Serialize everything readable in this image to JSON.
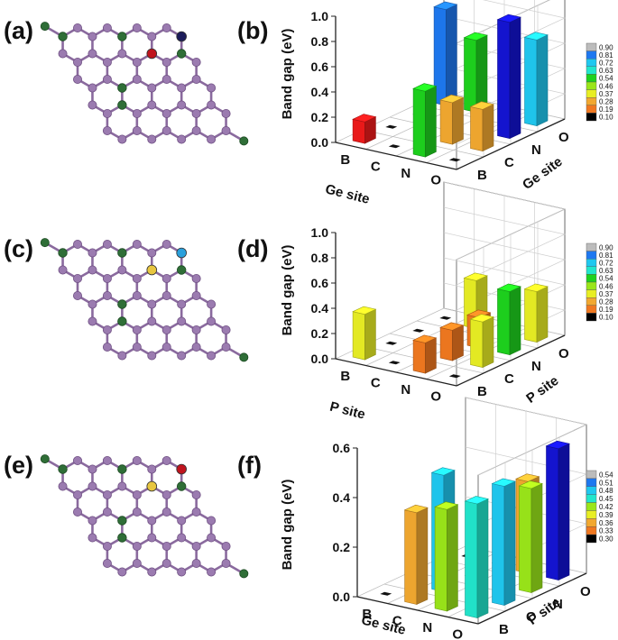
{
  "panel_labels": [
    "(a)",
    "(b)",
    "(c)",
    "(d)",
    "(e)",
    "(f)"
  ],
  "structures": {
    "a": {
      "label": "(a)",
      "dopants": [
        "red",
        "navy"
      ]
    },
    "c": {
      "label": "(c)",
      "dopants": [
        "yellow",
        "cyan"
      ]
    },
    "e": {
      "label": "(e)",
      "dopants": [
        "yellow",
        "red"
      ]
    }
  },
  "colors": {
    "framework_atom": "#9b7bb0",
    "bond": "#8a6a9e",
    "edge_atom": "#2f6e37"
  },
  "chart_data": [
    {
      "panel": "(b)",
      "type": "bar3d",
      "ylabel": "Band gap (eV)",
      "zlim": [
        0.0,
        1.0
      ],
      "z_ticks": [
        "0.0",
        "0.2",
        "0.4",
        "0.6",
        "0.8",
        "1.0"
      ],
      "x_axis_label": "Ge site",
      "x_categories": [
        "B",
        "C",
        "N",
        "O"
      ],
      "y_axis_label": "Ge site",
      "y_categories": [
        "B",
        "C",
        "N",
        "O"
      ],
      "colorbar_ticks": [
        "0.90",
        "0.81",
        "0.72",
        "0.63",
        "0.54",
        "0.46",
        "0.37",
        "0.28",
        "0.19",
        "0.10"
      ],
      "bars": [
        {
          "x": "B",
          "y": "B",
          "value": 0.17
        },
        {
          "x": "N",
          "y": "B",
          "value": 0.52
        },
        {
          "x": "N",
          "y": "C",
          "value": 0.33
        },
        {
          "x": "O",
          "y": "C",
          "value": 0.33
        },
        {
          "x": "B",
          "y": "O",
          "value": 0.76
        },
        {
          "x": "C",
          "y": "O",
          "value": 0.57
        },
        {
          "x": "O",
          "y": "O",
          "value": 0.68
        },
        {
          "x": "O",
          "y": "N",
          "value": 0.92
        }
      ]
    },
    {
      "panel": "(d)",
      "type": "bar3d",
      "ylabel": "Band gap (eV)",
      "zlim": [
        0.0,
        1.0
      ],
      "z_ticks": [
        "0.0",
        "0.2",
        "0.4",
        "0.6",
        "0.8",
        "1.0"
      ],
      "x_axis_label": "P site",
      "x_categories": [
        "B",
        "C",
        "N",
        "O"
      ],
      "y_axis_label": "P site",
      "y_categories": [
        "B",
        "C",
        "N",
        "O"
      ],
      "colorbar_ticks": [
        "0.90",
        "0.81",
        "0.72",
        "0.63",
        "0.54",
        "0.46",
        "0.37",
        "0.28",
        "0.19",
        "0.10"
      ],
      "bars": [
        {
          "x": "B",
          "y": "B",
          "value": 0.36
        },
        {
          "x": "N",
          "y": "B",
          "value": 0.24
        },
        {
          "x": "N",
          "y": "C",
          "value": 0.24
        },
        {
          "x": "N",
          "y": "N",
          "value": 0.24
        },
        {
          "x": "C",
          "y": "O",
          "value": 0.38
        },
        {
          "x": "O",
          "y": "O",
          "value": 0.4
        },
        {
          "x": "O",
          "y": "C",
          "value": 0.36
        },
        {
          "x": "O",
          "y": "N",
          "value": 0.5
        }
      ]
    },
    {
      "panel": "(f)",
      "type": "bar3d",
      "ylabel": "Band gap (eV)",
      "zlim": [
        0.0,
        0.6
      ],
      "z_ticks": [
        "0.0",
        "0.2",
        "0.4",
        "0.6"
      ],
      "x_axis_label": "Ge site",
      "x_categories": [
        "B",
        "C",
        "N",
        "O"
      ],
      "y_axis_label": "P site",
      "y_categories": [
        "B",
        "C",
        "N",
        "O"
      ],
      "colorbar_ticks": [
        "0.54",
        "0.51",
        "0.48",
        "0.45",
        "0.42",
        "0.39",
        "0.36",
        "0.33",
        "0.30"
      ],
      "bars": [
        {
          "x": "C",
          "y": "B",
          "value": 0.37
        },
        {
          "x": "N",
          "y": "O",
          "value": 0.37
        },
        {
          "x": "C",
          "y": "C",
          "value": 0.47
        },
        {
          "x": "N",
          "y": "B",
          "value": 0.41
        },
        {
          "x": "O",
          "y": "C",
          "value": 0.48
        },
        {
          "x": "O",
          "y": "B",
          "value": 0.46
        },
        {
          "x": "O",
          "y": "O",
          "value": 0.53
        },
        {
          "x": "O",
          "y": "N",
          "value": 0.42
        }
      ]
    }
  ]
}
